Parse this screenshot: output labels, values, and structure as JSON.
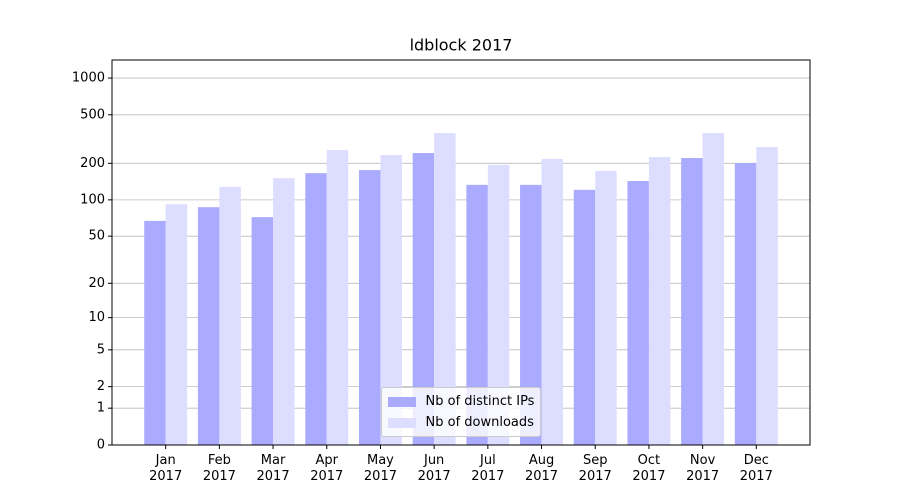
{
  "chart_data": {
    "type": "bar",
    "title": "ldblock 2017",
    "categories": [
      "Jan 2017",
      "Feb 2017",
      "Mar 2017",
      "Apr 2017",
      "May 2017",
      "Jun 2017",
      "Jul 2017",
      "Aug 2017",
      "Sep 2017",
      "Oct 2017",
      "Nov 2017",
      "Dec 2017"
    ],
    "series": [
      {
        "name": "Nb of distinct IPs",
        "color": "#aaaaff",
        "values": [
          67,
          87,
          72,
          166,
          176,
          243,
          133,
          133,
          121,
          143,
          221,
          201
        ]
      },
      {
        "name": "Nb of downloads",
        "color": "#ddddff",
        "values": [
          92,
          128,
          151,
          257,
          234,
          354,
          194,
          217,
          173,
          225,
          354,
          272
        ]
      }
    ],
    "yscale": "log1p",
    "ylim": [
      0,
      1405
    ],
    "yticks": [
      0,
      1,
      2,
      5,
      10,
      20,
      50,
      100,
      200,
      500,
      1000
    ],
    "grid": true,
    "legend": "lower center"
  }
}
